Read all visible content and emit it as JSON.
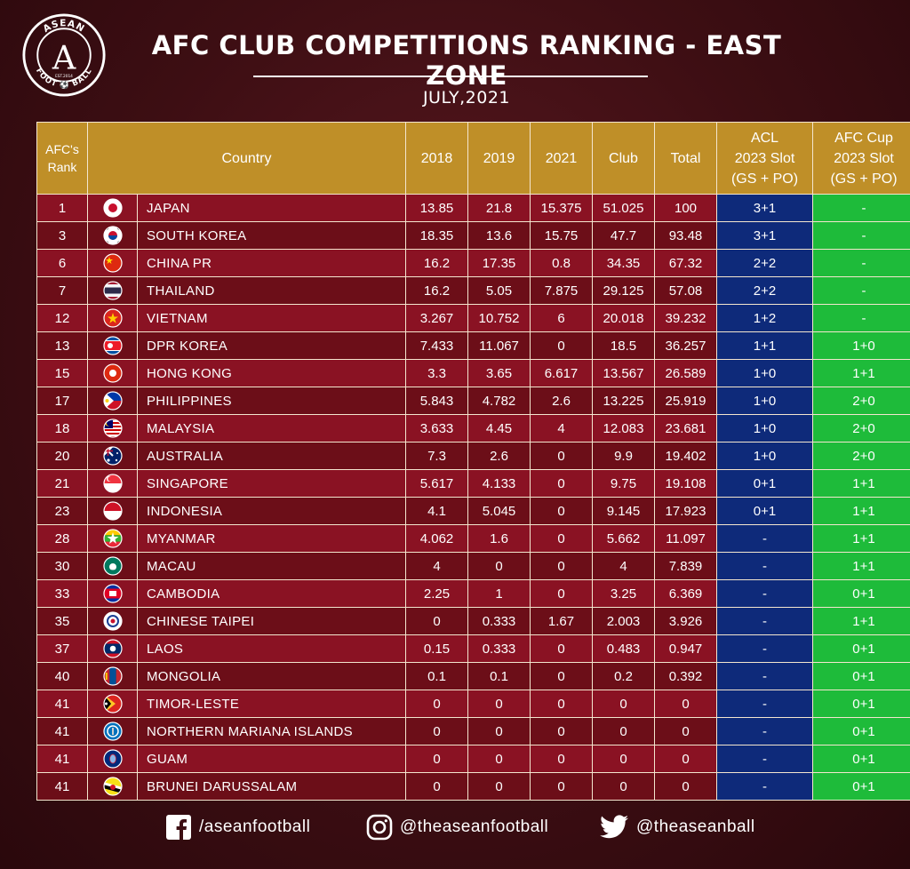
{
  "logo": {
    "top_text": "ASEAN",
    "bottom_text": "FOOT ⚽ BALL",
    "est": "EST.2014",
    "letter": "A"
  },
  "title": "AFC CLUB COMPETITIONS RANKING - EAST ZONE",
  "subtitle": "JULY,2021",
  "chart_data": {
    "type": "table",
    "columns": [
      "AFC's\nRank",
      "Country",
      "2018",
      "2019",
      "2021",
      "Club",
      "Total",
      "ACL\n2023 Slot\n(GS + PO)",
      "AFC Cup\n2023 Slot\n(GS + PO)"
    ],
    "rows": [
      {
        "rank": "1",
        "flag": "japan",
        "country": "JAPAN",
        "y2018": "13.85",
        "y2019": "21.8",
        "y2021": "15.375",
        "club": "51.025",
        "total": "100",
        "acl": "3+1",
        "afc_cup": "-"
      },
      {
        "rank": "3",
        "flag": "south-korea",
        "country": "SOUTH KOREA",
        "y2018": "18.35",
        "y2019": "13.6",
        "y2021": "15.75",
        "club": "47.7",
        "total": "93.48",
        "acl": "3+1",
        "afc_cup": "-"
      },
      {
        "rank": "6",
        "flag": "china",
        "country": "CHINA PR",
        "y2018": "16.2",
        "y2019": "17.35",
        "y2021": "0.8",
        "club": "34.35",
        "total": "67.32",
        "acl": "2+2",
        "afc_cup": "-"
      },
      {
        "rank": "7",
        "flag": "thailand",
        "country": "THAILAND",
        "y2018": "16.2",
        "y2019": "5.05",
        "y2021": "7.875",
        "club": "29.125",
        "total": "57.08",
        "acl": "2+2",
        "afc_cup": "-"
      },
      {
        "rank": "12",
        "flag": "vietnam",
        "country": "VIETNAM",
        "y2018": "3.267",
        "y2019": "10.752",
        "y2021": "6",
        "club": "20.018",
        "total": "39.232",
        "acl": "1+2",
        "afc_cup": "-"
      },
      {
        "rank": "13",
        "flag": "dpr-korea",
        "country": "DPR KOREA",
        "y2018": "7.433",
        "y2019": "11.067",
        "y2021": "0",
        "club": "18.5",
        "total": "36.257",
        "acl": "1+1",
        "afc_cup": "1+0"
      },
      {
        "rank": "15",
        "flag": "hong-kong",
        "country": "HONG KONG",
        "y2018": "3.3",
        "y2019": "3.65",
        "y2021": "6.617",
        "club": "13.567",
        "total": "26.589",
        "acl": "1+0",
        "afc_cup": "1+1"
      },
      {
        "rank": "17",
        "flag": "philippines",
        "country": "PHILIPPINES",
        "y2018": "5.843",
        "y2019": "4.782",
        "y2021": "2.6",
        "club": "13.225",
        "total": "25.919",
        "acl": "1+0",
        "afc_cup": "2+0"
      },
      {
        "rank": "18",
        "flag": "malaysia",
        "country": "MALAYSIA",
        "y2018": "3.633",
        "y2019": "4.45",
        "y2021": "4",
        "club": "12.083",
        "total": "23.681",
        "acl": "1+0",
        "afc_cup": "2+0"
      },
      {
        "rank": "20",
        "flag": "australia",
        "country": "AUSTRALIA",
        "y2018": "7.3",
        "y2019": "2.6",
        "y2021": "0",
        "club": "9.9",
        "total": "19.402",
        "acl": "1+0",
        "afc_cup": "2+0"
      },
      {
        "rank": "21",
        "flag": "singapore",
        "country": "SINGAPORE",
        "y2018": "5.617",
        "y2019": "4.133",
        "y2021": "0",
        "club": "9.75",
        "total": "19.108",
        "acl": "0+1",
        "afc_cup": "1+1"
      },
      {
        "rank": "23",
        "flag": "indonesia",
        "country": "INDONESIA",
        "y2018": "4.1",
        "y2019": "5.045",
        "y2021": "0",
        "club": "9.145",
        "total": "17.923",
        "acl": "0+1",
        "afc_cup": "1+1"
      },
      {
        "rank": "28",
        "flag": "myanmar",
        "country": "MYANMAR",
        "y2018": "4.062",
        "y2019": "1.6",
        "y2021": "0",
        "club": "5.662",
        "total": "11.097",
        "acl": "-",
        "afc_cup": "1+1"
      },
      {
        "rank": "30",
        "flag": "macau",
        "country": "MACAU",
        "y2018": "4",
        "y2019": "0",
        "y2021": "0",
        "club": "4",
        "total": "7.839",
        "acl": "-",
        "afc_cup": "1+1"
      },
      {
        "rank": "33",
        "flag": "cambodia",
        "country": "CAMBODIA",
        "y2018": "2.25",
        "y2019": "1",
        "y2021": "0",
        "club": "3.25",
        "total": "6.369",
        "acl": "-",
        "afc_cup": "0+1"
      },
      {
        "rank": "35",
        "flag": "chinese-taipei",
        "country": "CHINESE TAIPEI",
        "y2018": "0",
        "y2019": "0.333",
        "y2021": "1.67",
        "club": "2.003",
        "total": "3.926",
        "acl": "-",
        "afc_cup": "1+1"
      },
      {
        "rank": "37",
        "flag": "laos",
        "country": "LAOS",
        "y2018": "0.15",
        "y2019": "0.333",
        "y2021": "0",
        "club": "0.483",
        "total": "0.947",
        "acl": "-",
        "afc_cup": "0+1"
      },
      {
        "rank": "40",
        "flag": "mongolia",
        "country": "MONGOLIA",
        "y2018": "0.1",
        "y2019": "0.1",
        "y2021": "0",
        "club": "0.2",
        "total": "0.392",
        "acl": "-",
        "afc_cup": "0+1"
      },
      {
        "rank": "41",
        "flag": "timor-leste",
        "country": "TIMOR-LESTE",
        "y2018": "0",
        "y2019": "0",
        "y2021": "0",
        "club": "0",
        "total": "0",
        "acl": "-",
        "afc_cup": "0+1"
      },
      {
        "rank": "41",
        "flag": "northern-mariana-islands",
        "country": "NORTHERN MARIANA ISLANDS",
        "y2018": "0",
        "y2019": "0",
        "y2021": "0",
        "club": "0",
        "total": "0",
        "acl": "-",
        "afc_cup": "0+1"
      },
      {
        "rank": "41",
        "flag": "guam",
        "country": "GUAM",
        "y2018": "0",
        "y2019": "0",
        "y2021": "0",
        "club": "0",
        "total": "0",
        "acl": "-",
        "afc_cup": "0+1"
      },
      {
        "rank": "41",
        "flag": "brunei",
        "country": "BRUNEI DARUSSALAM",
        "y2018": "0",
        "y2019": "0",
        "y2021": "0",
        "club": "0",
        "total": "0",
        "acl": "-",
        "afc_cup": "0+1"
      }
    ]
  },
  "footer": {
    "facebook": {
      "icon": "facebook-icon",
      "handle": "/aseanfootball"
    },
    "instagram": {
      "icon": "instagram-icon",
      "handle": "@theaseanfootball"
    },
    "twitter": {
      "icon": "twitter-icon",
      "handle": "@theaseanball"
    }
  },
  "colors": {
    "header": "#bf8f28",
    "row_odd": "#8a1223",
    "row_even": "#6c0e18",
    "acl_col": "#0e2a7a",
    "afc_cup_col": "#1ebb3a",
    "background": "#3d0e13"
  }
}
